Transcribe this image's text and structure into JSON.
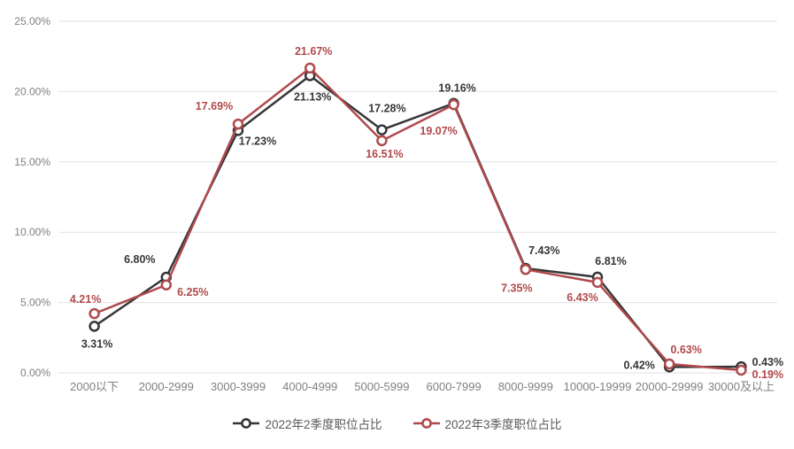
{
  "chart_data": {
    "type": "line",
    "categories": [
      "2000以下",
      "2000-2999",
      "3000-3999",
      "4000-4999",
      "5000-5999",
      "6000-7999",
      "8000-9999",
      "10000-19999",
      "20000-29999",
      "30000及以上"
    ],
    "series": [
      {
        "name": "2022年2季度职位占比",
        "color": "#363638",
        "values": [
          3.31,
          6.8,
          17.23,
          21.13,
          17.28,
          19.16,
          7.43,
          6.81,
          0.42,
          0.43
        ],
        "labels": [
          "3.31%",
          "6.80%",
          "17.23%",
          "21.13%",
          "17.28%",
          "19.16%",
          "7.43%",
          "6.81%",
          "0.42%",
          "0.43%"
        ],
        "label_offsets": [
          [
            3,
            20
          ],
          [
            -30,
            -20
          ],
          [
            22,
            12
          ],
          [
            3,
            24
          ],
          [
            6,
            -24
          ],
          [
            4,
            -17
          ],
          [
            21,
            -20
          ],
          [
            15,
            -18
          ],
          [
            -34,
            -2
          ],
          [
            30,
            -5
          ]
        ]
      },
      {
        "name": "2022年3季度职位占比",
        "color": "#b04a4c",
        "values": [
          4.21,
          6.25,
          17.69,
          21.67,
          16.51,
          19.07,
          7.35,
          6.43,
          0.63,
          0.19
        ],
        "labels": [
          "4.21%",
          "6.25%",
          "17.69%",
          "21.67%",
          "16.51%",
          "19.07%",
          "7.35%",
          "6.43%",
          "0.63%",
          "0.19%"
        ],
        "label_offsets": [
          [
            -10,
            -16
          ],
          [
            30,
            8
          ],
          [
            -27,
            -20
          ],
          [
            4,
            -19
          ],
          [
            3,
            15
          ],
          [
            -17,
            30
          ],
          [
            -10,
            21
          ],
          [
            -17,
            17
          ],
          [
            19,
            -16
          ],
          [
            30,
            5
          ]
        ]
      }
    ],
    "yticks": [
      "0.00%",
      "5.00%",
      "10.00%",
      "15.00%",
      "20.00%",
      "25.00%"
    ],
    "ytick_values": [
      0,
      5,
      10,
      15,
      20,
      25
    ],
    "ylim": [
      0,
      25
    ],
    "grid": true,
    "legend_position": "bottom",
    "colors": {
      "grid": "#e2e2e2",
      "axis_text": "#808080",
      "background": "#ffffff",
      "marker_fill": "#ffffff"
    }
  }
}
